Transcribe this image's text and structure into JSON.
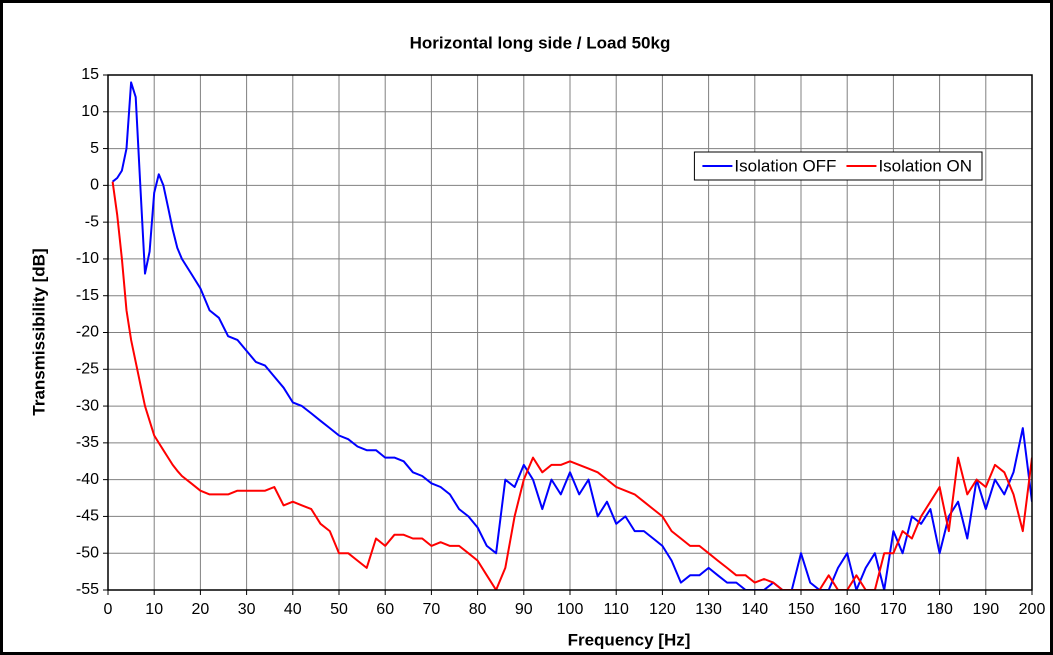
{
  "chart_data": {
    "type": "line",
    "title": "Horizontal long side / Load 50kg",
    "xlabel": "Frequency [Hz]",
    "ylabel": "Transmissibility [dB]",
    "x": [
      1,
      2,
      3,
      4,
      5,
      6,
      7,
      8,
      9,
      10,
      11,
      12,
      13,
      14,
      15,
      16,
      18,
      20,
      22,
      24,
      26,
      28,
      30,
      32,
      34,
      36,
      38,
      40,
      42,
      44,
      46,
      48,
      50,
      52,
      54,
      56,
      58,
      60,
      62,
      64,
      66,
      68,
      70,
      72,
      74,
      76,
      78,
      80,
      82,
      84,
      86,
      88,
      90,
      92,
      94,
      96,
      98,
      100,
      102,
      104,
      106,
      108,
      110,
      112,
      114,
      116,
      118,
      120,
      122,
      124,
      126,
      128,
      130,
      132,
      134,
      136,
      138,
      140,
      142,
      144,
      146,
      148,
      150,
      152,
      154,
      156,
      158,
      160,
      162,
      164,
      166,
      168,
      170,
      172,
      174,
      176,
      178,
      180,
      182,
      184,
      186,
      188,
      190,
      192,
      194,
      196,
      198,
      200
    ],
    "series": [
      {
        "name": "Isolation OFF",
        "color": "#0000ff",
        "values": [
          0.5,
          1,
          2,
          5,
          14,
          12,
          0,
          -12,
          -9,
          -1,
          1.5,
          0,
          -3,
          -6,
          -8.5,
          -10,
          -12,
          -14,
          -17,
          -18,
          -20.5,
          -21,
          -22.5,
          -24,
          -24.5,
          -26,
          -27.5,
          -29.5,
          -30,
          -31,
          -32,
          -33,
          -34,
          -34.5,
          -35.5,
          -36,
          -36,
          -37,
          -37,
          -37.5,
          -39,
          -39.5,
          -40.5,
          -41,
          -42,
          -44,
          -45,
          -46.5,
          -49,
          -50,
          -40,
          -41,
          -38,
          -40,
          -44,
          -40,
          -42,
          -39,
          -42,
          -40,
          -45,
          -43,
          -46,
          -45,
          -47,
          -47,
          -48,
          -49,
          -51,
          -54,
          -53,
          -53,
          -52,
          -53,
          -54,
          -54,
          -55,
          -55,
          -55,
          -54,
          -55,
          -55,
          -50,
          -54,
          -55,
          -55,
          -52,
          -50,
          -55,
          -52,
          -50,
          -55,
          -47,
          -50,
          -45,
          -46,
          -44,
          -50,
          -45,
          -43,
          -48,
          -40,
          -44,
          -40,
          -42,
          -39,
          -33,
          -43
        ]
      },
      {
        "name": "Isolation ON",
        "color": "#ff0000",
        "values": [
          0.5,
          -4,
          -10,
          -17,
          -21,
          -24,
          -27,
          -30,
          -32,
          -34,
          -35,
          -36,
          -37,
          -38,
          -38.8,
          -39.5,
          -40.5,
          -41.5,
          -42,
          -42,
          -42,
          -41.5,
          -41.5,
          -41.5,
          -41.5,
          -41,
          -43.5,
          -43,
          -43.5,
          -44,
          -46,
          -47,
          -50,
          -50,
          -51,
          -52,
          -48,
          -49,
          -47.5,
          -47.5,
          -48,
          -48,
          -49,
          -48.5,
          -49,
          -49,
          -50,
          -51,
          -53,
          -55,
          -52,
          -45,
          -40,
          -37,
          -39,
          -38,
          -38,
          -37.5,
          -38,
          -38.5,
          -39,
          -40,
          -41,
          -41.5,
          -42,
          -43,
          -44,
          -45,
          -47,
          -48,
          -49,
          -49,
          -50,
          -51,
          -52,
          -53,
          -53,
          -54,
          -53.5,
          -54,
          -55,
          -55,
          -55,
          -55,
          -55,
          -53,
          -55,
          -55,
          -53,
          -55,
          -55,
          -50,
          -50,
          -47,
          -48,
          -45,
          -43,
          -41,
          -47,
          -37,
          -42,
          -40,
          -41,
          -38,
          -39,
          -42,
          -47,
          -37
        ]
      }
    ],
    "xlim": [
      0,
      200
    ],
    "xticks": [
      0,
      10,
      20,
      30,
      40,
      50,
      60,
      70,
      80,
      90,
      100,
      110,
      120,
      130,
      140,
      150,
      160,
      170,
      180,
      190,
      200
    ],
    "ylim": [
      -55,
      15
    ],
    "yticks": [
      -55,
      -50,
      -45,
      -40,
      -35,
      -30,
      -25,
      -20,
      -15,
      -10,
      -5,
      0,
      5,
      10,
      15
    ],
    "grid": true,
    "legend": "upper right"
  }
}
